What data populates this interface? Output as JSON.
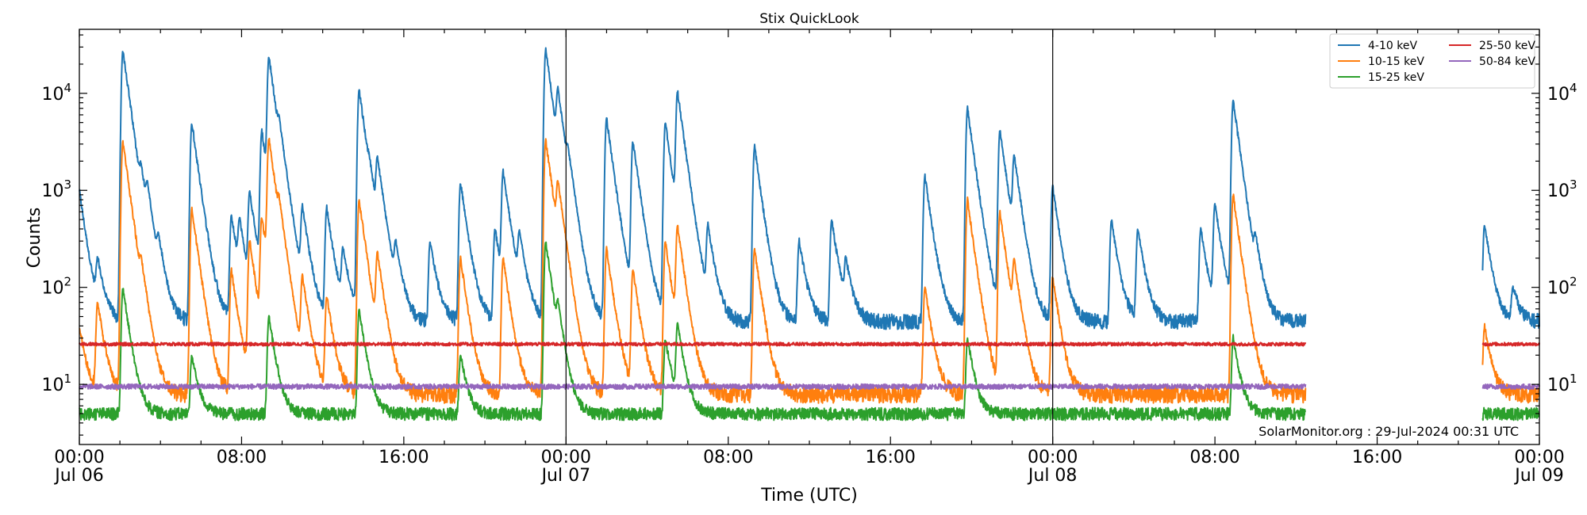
{
  "chart_data": {
    "type": "line",
    "title": "Stix QuickLook",
    "xlabel": "Time (UTC)",
    "ylabel": "Counts",
    "yscale": "log",
    "ylim": [
      2.4,
      45700
    ],
    "xlim": [
      "2024-07-06T00:00",
      "2024-07-09T00:00"
    ],
    "grid": false,
    "legend_placement": "top-right",
    "legend_columns": 2,
    "y_ticks": [
      {
        "value": 10,
        "base": "10",
        "exp": "1"
      },
      {
        "value": 100,
        "base": "10",
        "exp": "2"
      },
      {
        "value": 1000,
        "base": "10",
        "exp": "3"
      },
      {
        "value": 10000,
        "base": "10",
        "exp": "4"
      }
    ],
    "x_ticks": [
      {
        "time": "2024-07-06T00:00",
        "line1": "00:00",
        "line2": "Jul 06"
      },
      {
        "time": "2024-07-06T08:00",
        "line1": "08:00",
        "line2": ""
      },
      {
        "time": "2024-07-06T16:00",
        "line1": "16:00",
        "line2": ""
      },
      {
        "time": "2024-07-07T00:00",
        "line1": "00:00",
        "line2": "Jul 07"
      },
      {
        "time": "2024-07-07T08:00",
        "line1": "08:00",
        "line2": ""
      },
      {
        "time": "2024-07-07T16:00",
        "line1": "16:00",
        "line2": ""
      },
      {
        "time": "2024-07-08T00:00",
        "line1": "00:00",
        "line2": "Jul 08"
      },
      {
        "time": "2024-07-08T08:00",
        "line1": "08:00",
        "line2": ""
      },
      {
        "time": "2024-07-08T16:00",
        "line1": "16:00",
        "line2": ""
      },
      {
        "time": "2024-07-09T00:00",
        "line1": "00:00",
        "line2": "Jul 09"
      }
    ],
    "day_boundaries": [
      "2024-07-07T00:00",
      "2024-07-08T00:00"
    ],
    "data_gap": [
      "2024-07-08T12:28",
      "2024-07-08T21:12"
    ],
    "series": [
      {
        "name": "4-10 keV",
        "color": "#1f77b4",
        "baseline": 45,
        "peaks": [
          [
            "2024-07-06T00:00",
            1000
          ],
          [
            "2024-07-06T00:54",
            170
          ],
          [
            "2024-07-06T02:09",
            28000
          ],
          [
            "2024-07-06T03:03",
            780
          ],
          [
            "2024-07-06T03:21",
            600
          ],
          [
            "2024-07-06T03:54",
            200
          ],
          [
            "2024-07-06T05:33",
            5000
          ],
          [
            "2024-07-06T07:30",
            550
          ],
          [
            "2024-07-06T07:54",
            400
          ],
          [
            "2024-07-06T08:24",
            900
          ],
          [
            "2024-07-06T09:00",
            4000
          ],
          [
            "2024-07-06T09:21",
            23000
          ],
          [
            "2024-07-06T09:51",
            1700
          ],
          [
            "2024-07-06T11:00",
            600
          ],
          [
            "2024-07-06T12:12",
            650
          ],
          [
            "2024-07-06T13:00",
            230
          ],
          [
            "2024-07-06T13:48",
            11000
          ],
          [
            "2024-07-06T14:18",
            500
          ],
          [
            "2024-07-06T14:42",
            1700
          ],
          [
            "2024-07-06T15:36",
            220
          ],
          [
            "2024-07-06T17:18",
            300
          ],
          [
            "2024-07-06T18:48",
            1200
          ],
          [
            "2024-07-06T20:30",
            400
          ],
          [
            "2024-07-06T20:54",
            1500
          ],
          [
            "2024-07-06T21:42",
            300
          ],
          [
            "2024-07-06T23:00",
            28000
          ],
          [
            "2024-07-06T23:36",
            8000
          ],
          [
            "2024-07-07T00:06",
            1000
          ],
          [
            "2024-07-07T02:00",
            5500
          ],
          [
            "2024-07-07T03:18",
            3200
          ],
          [
            "2024-07-07T04:54",
            5000
          ],
          [
            "2024-07-07T05:30",
            10000
          ],
          [
            "2024-07-07T07:00",
            400
          ],
          [
            "2024-07-07T09:18",
            2800
          ],
          [
            "2024-07-07T11:30",
            300
          ],
          [
            "2024-07-07T13:06",
            500
          ],
          [
            "2024-07-07T13:48",
            170
          ],
          [
            "2024-07-07T17:42",
            1400
          ],
          [
            "2024-07-07T19:48",
            7000
          ],
          [
            "2024-07-07T21:24",
            4200
          ],
          [
            "2024-07-07T22:06",
            2000
          ],
          [
            "2024-07-08T00:00",
            1100
          ],
          [
            "2024-07-08T02:54",
            500
          ],
          [
            "2024-07-08T04:12",
            400
          ],
          [
            "2024-07-08T07:18",
            400
          ],
          [
            "2024-07-08T08:00",
            700
          ],
          [
            "2024-07-08T08:54",
            8500
          ],
          [
            "2024-07-08T10:00",
            200
          ],
          [
            "2024-07-08T21:18",
            450
          ],
          [
            "2024-07-08T22:42",
            100
          ]
        ]
      },
      {
        "name": "10-15 keV",
        "color": "#ff7f0e",
        "baseline": 8,
        "peaks": [
          [
            "2024-07-06T00:00",
            40
          ],
          [
            "2024-07-06T00:54",
            70
          ],
          [
            "2024-07-06T02:09",
            3200
          ],
          [
            "2024-07-06T03:03",
            80
          ],
          [
            "2024-07-06T05:33",
            650
          ],
          [
            "2024-07-06T07:30",
            150
          ],
          [
            "2024-07-06T08:24",
            300
          ],
          [
            "2024-07-06T09:00",
            500
          ],
          [
            "2024-07-06T09:21",
            3300
          ],
          [
            "2024-07-06T09:51",
            300
          ],
          [
            "2024-07-06T11:00",
            120
          ],
          [
            "2024-07-06T12:12",
            80
          ],
          [
            "2024-07-06T13:48",
            800
          ],
          [
            "2024-07-06T14:42",
            200
          ],
          [
            "2024-07-06T18:48",
            200
          ],
          [
            "2024-07-06T20:54",
            200
          ],
          [
            "2024-07-06T23:00",
            3300
          ],
          [
            "2024-07-06T23:36",
            900
          ],
          [
            "2024-07-07T02:00",
            250
          ],
          [
            "2024-07-07T03:18",
            150
          ],
          [
            "2024-07-07T04:54",
            300
          ],
          [
            "2024-07-07T05:30",
            400
          ],
          [
            "2024-07-07T09:18",
            250
          ],
          [
            "2024-07-07T17:42",
            100
          ],
          [
            "2024-07-07T19:48",
            800
          ],
          [
            "2024-07-07T21:24",
            600
          ],
          [
            "2024-07-07T22:06",
            150
          ],
          [
            "2024-07-08T00:00",
            130
          ],
          [
            "2024-07-08T08:54",
            900
          ],
          [
            "2024-07-08T21:18",
            40
          ]
        ]
      },
      {
        "name": "15-25 keV",
        "color": "#2ca02c",
        "baseline": 5,
        "peaks": [
          [
            "2024-07-06T02:09",
            100
          ],
          [
            "2024-07-06T05:33",
            20
          ],
          [
            "2024-07-06T09:21",
            50
          ],
          [
            "2024-07-06T13:48",
            60
          ],
          [
            "2024-07-06T18:48",
            20
          ],
          [
            "2024-07-06T23:00",
            300
          ],
          [
            "2024-07-06T23:36",
            40
          ],
          [
            "2024-07-07T04:54",
            30
          ],
          [
            "2024-07-07T05:30",
            40
          ],
          [
            "2024-07-07T19:48",
            30
          ],
          [
            "2024-07-08T08:54",
            30
          ]
        ]
      },
      {
        "name": "25-50 keV",
        "color": "#d62728",
        "baseline": 26,
        "peaks": []
      },
      {
        "name": "50-84 keV",
        "color": "#9467bd",
        "baseline": 9.5,
        "peaks": []
      }
    ],
    "footer": "SolarMonitor.org : 29-Jul-2024 00:31 UTC"
  }
}
